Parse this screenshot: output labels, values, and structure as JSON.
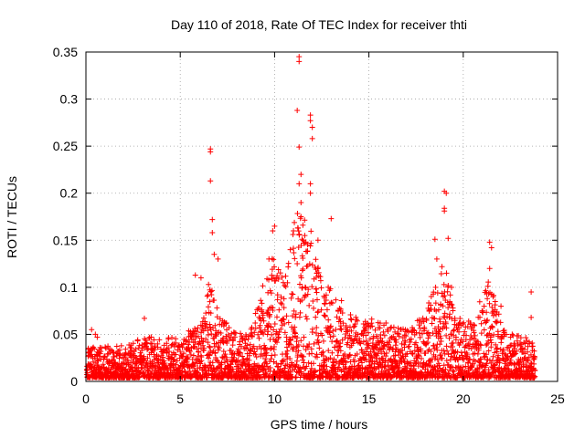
{
  "chart_data": {
    "type": "scatter",
    "title": "Day 110 of 2018, Rate Of TEC Index for receiver thti",
    "xlabel": "GPS time / hours",
    "ylabel": "ROTI / TECUs",
    "xlim": [
      0,
      25
    ],
    "ylim": [
      0,
      0.35
    ],
    "xticks": [
      0,
      5,
      10,
      15,
      20,
      25
    ],
    "xtick_labels": [
      "0",
      "5",
      "10",
      "15",
      "20",
      "25"
    ],
    "yticks": [
      0,
      0.05,
      0.1,
      0.15,
      0.2,
      0.25,
      0.3,
      0.35
    ],
    "ytick_labels": [
      "0",
      "0.05",
      "0.1",
      "0.15",
      "0.2",
      "0.25",
      "0.3",
      "0.35"
    ],
    "grid": true,
    "marker": "+",
    "series_color": "#ff0000",
    "notable_points": [
      {
        "x": 11.3,
        "y": 0.345
      },
      {
        "x": 11.3,
        "y": 0.34
      },
      {
        "x": 11.2,
        "y": 0.288
      },
      {
        "x": 11.9,
        "y": 0.283
      },
      {
        "x": 11.9,
        "y": 0.277
      },
      {
        "x": 12.0,
        "y": 0.27
      },
      {
        "x": 12.0,
        "y": 0.258
      },
      {
        "x": 11.3,
        "y": 0.249
      },
      {
        "x": 6.6,
        "y": 0.247
      },
      {
        "x": 6.6,
        "y": 0.244
      },
      {
        "x": 6.6,
        "y": 0.213
      },
      {
        "x": 11.4,
        "y": 0.22
      },
      {
        "x": 11.3,
        "y": 0.21
      },
      {
        "x": 11.9,
        "y": 0.21
      },
      {
        "x": 11.9,
        "y": 0.2
      },
      {
        "x": 19.0,
        "y": 0.202
      },
      {
        "x": 19.1,
        "y": 0.2
      },
      {
        "x": 11.4,
        "y": 0.19
      },
      {
        "x": 19.0,
        "y": 0.184
      },
      {
        "x": 19.0,
        "y": 0.181
      },
      {
        "x": 11.4,
        "y": 0.175
      },
      {
        "x": 13.0,
        "y": 0.173
      },
      {
        "x": 6.7,
        "y": 0.172
      },
      {
        "x": 11.5,
        "y": 0.166
      },
      {
        "x": 10.0,
        "y": 0.165
      },
      {
        "x": 9.9,
        "y": 0.16
      },
      {
        "x": 11.0,
        "y": 0.16
      },
      {
        "x": 6.7,
        "y": 0.158
      },
      {
        "x": 11.6,
        "y": 0.155
      },
      {
        "x": 12.3,
        "y": 0.15
      },
      {
        "x": 18.5,
        "y": 0.151
      },
      {
        "x": 21.4,
        "y": 0.148
      },
      {
        "x": 19.2,
        "y": 0.152
      },
      {
        "x": 21.5,
        "y": 0.142
      },
      {
        "x": 6.8,
        "y": 0.135
      },
      {
        "x": 7.0,
        "y": 0.13
      },
      {
        "x": 18.6,
        "y": 0.13
      },
      {
        "x": 9.7,
        "y": 0.13
      },
      {
        "x": 21.4,
        "y": 0.12
      },
      {
        "x": 5.8,
        "y": 0.113
      },
      {
        "x": 6.1,
        "y": 0.11
      },
      {
        "x": 6.5,
        "y": 0.103
      },
      {
        "x": 23.6,
        "y": 0.095
      },
      {
        "x": 22.0,
        "y": 0.08
      },
      {
        "x": 23.6,
        "y": 0.068
      },
      {
        "x": 3.1,
        "y": 0.067
      },
      {
        "x": 0.5,
        "y": 0.05
      },
      {
        "x": 0.6,
        "y": 0.047
      },
      {
        "x": 0.3,
        "y": 0.055
      }
    ],
    "activity_profile": [
      {
        "x": 0,
        "y": 0.028
      },
      {
        "x": 1,
        "y": 0.03
      },
      {
        "x": 2,
        "y": 0.03
      },
      {
        "x": 3,
        "y": 0.04
      },
      {
        "x": 4,
        "y": 0.035
      },
      {
        "x": 5,
        "y": 0.04
      },
      {
        "x": 6,
        "y": 0.05
      },
      {
        "x": 6.6,
        "y": 0.09
      },
      {
        "x": 7.2,
        "y": 0.06
      },
      {
        "x": 8,
        "y": 0.04
      },
      {
        "x": 9,
        "y": 0.06
      },
      {
        "x": 9.9,
        "y": 0.12
      },
      {
        "x": 10.5,
        "y": 0.09
      },
      {
        "x": 11.2,
        "y": 0.16
      },
      {
        "x": 11.9,
        "y": 0.14
      },
      {
        "x": 12.5,
        "y": 0.09
      },
      {
        "x": 13.3,
        "y": 0.08
      },
      {
        "x": 14,
        "y": 0.06
      },
      {
        "x": 15,
        "y": 0.055
      },
      {
        "x": 16,
        "y": 0.05
      },
      {
        "x": 17,
        "y": 0.045
      },
      {
        "x": 18,
        "y": 0.06
      },
      {
        "x": 18.6,
        "y": 0.1
      },
      {
        "x": 19.1,
        "y": 0.12
      },
      {
        "x": 19.6,
        "y": 0.06
      },
      {
        "x": 20.5,
        "y": 0.05
      },
      {
        "x": 21.4,
        "y": 0.1
      },
      {
        "x": 22,
        "y": 0.05
      },
      {
        "x": 23,
        "y": 0.04
      },
      {
        "x": 23.8,
        "y": 0.035
      }
    ]
  }
}
